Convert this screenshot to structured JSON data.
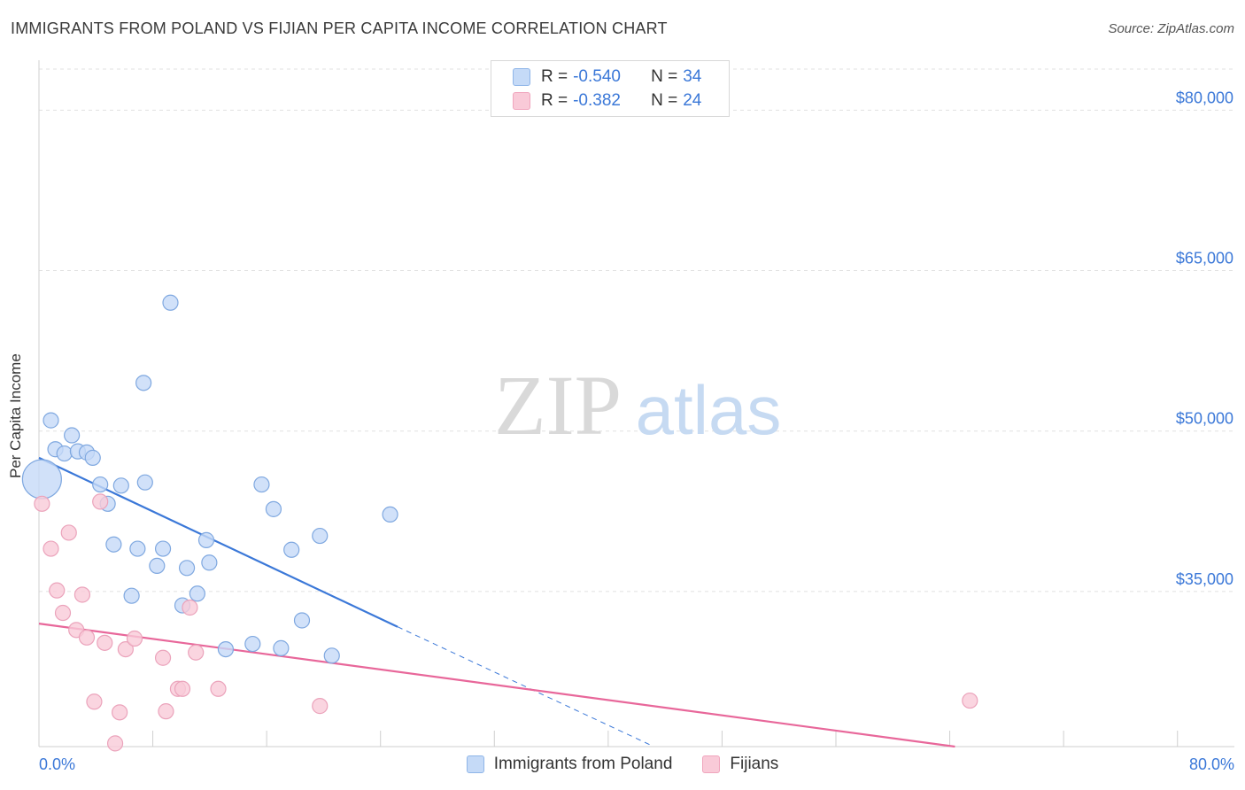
{
  "header": {
    "title": "IMMIGRANTS FROM POLAND VS FIJIAN PER CAPITA INCOME CORRELATION CHART",
    "source": "Source: ZipAtlas.com"
  },
  "stats": [
    {
      "r_label": "R =",
      "r_value": "-0.540",
      "n_label": "N =",
      "n_value": "34",
      "fill": "#c5daf7",
      "stroke": "#8fb5e8"
    },
    {
      "r_label": "R =",
      "r_value": "-0.382",
      "n_label": "N =",
      "n_value": "24",
      "fill": "#f9cad8",
      "stroke": "#f0a5bd"
    }
  ],
  "legend": [
    {
      "label": "Immigrants from Poland",
      "fill": "#c5daf7",
      "stroke": "#8fb5e8"
    },
    {
      "label": "Fijians",
      "fill": "#f9cad8",
      "stroke": "#f0a5bd"
    }
  ],
  "watermark": {
    "zip": "ZIP",
    "atlas": "atlas"
  },
  "chart_data": {
    "type": "scatter",
    "title": "IMMIGRANTS FROM POLAND VS FIJIAN PER CAPITA INCOME CORRELATION CHART",
    "xlabel": "",
    "ylabel": "Per Capita Income",
    "xlim": [
      0,
      80
    ],
    "ylim": [
      20500,
      84500
    ],
    "x_tick_labels": {
      "min": "0.0%",
      "max": "80.0%"
    },
    "y_ticks": [
      {
        "value": 35000,
        "label": "$35,000"
      },
      {
        "value": 50000,
        "label": "$50,000"
      },
      {
        "value": 65000,
        "label": "$65,000"
      },
      {
        "value": 80000,
        "label": "$80,000"
      }
    ],
    "grid": true,
    "series": [
      {
        "name": "Immigrants from Poland",
        "color": "#3b78d8",
        "point_fill": "#c5daf7",
        "point_stroke": "#7fa8e0",
        "points": [
          {
            "x": 0.2,
            "y": 45500,
            "size": "large"
          },
          {
            "x": 0.8,
            "y": 51000
          },
          {
            "x": 1.1,
            "y": 48300
          },
          {
            "x": 1.7,
            "y": 47900
          },
          {
            "x": 2.2,
            "y": 49600
          },
          {
            "x": 2.6,
            "y": 48100
          },
          {
            "x": 3.2,
            "y": 48000
          },
          {
            "x": 3.6,
            "y": 47500
          },
          {
            "x": 4.1,
            "y": 45000
          },
          {
            "x": 4.6,
            "y": 43200
          },
          {
            "x": 5.5,
            "y": 44900
          },
          {
            "x": 7.1,
            "y": 45200
          },
          {
            "x": 5.0,
            "y": 39400
          },
          {
            "x": 6.2,
            "y": 34600
          },
          {
            "x": 6.6,
            "y": 39000
          },
          {
            "x": 7.9,
            "y": 37400
          },
          {
            "x": 8.3,
            "y": 39000
          },
          {
            "x": 9.6,
            "y": 33700
          },
          {
            "x": 9.9,
            "y": 37200
          },
          {
            "x": 10.6,
            "y": 34800
          },
          {
            "x": 11.2,
            "y": 39800
          },
          {
            "x": 11.4,
            "y": 37700
          },
          {
            "x": 12.5,
            "y": 29600
          },
          {
            "x": 14.3,
            "y": 30100
          },
          {
            "x": 14.9,
            "y": 45000
          },
          {
            "x": 15.7,
            "y": 42700
          },
          {
            "x": 16.2,
            "y": 29700
          },
          {
            "x": 16.9,
            "y": 38900
          },
          {
            "x": 17.6,
            "y": 32300
          },
          {
            "x": 18.8,
            "y": 40200
          },
          {
            "x": 19.6,
            "y": 29000
          },
          {
            "x": 23.5,
            "y": 42200
          },
          {
            "x": 7.0,
            "y": 54500
          },
          {
            "x": 8.8,
            "y": 62000
          }
        ],
        "trend": {
          "x_start": 0,
          "y_start": 47500,
          "x_solid_end": 24,
          "y_solid_end": 31700,
          "x_dash_end": 41,
          "y_dash_end": 20600
        }
      },
      {
        "name": "Fijians",
        "color": "#e8679a",
        "point_fill": "#f9cad8",
        "point_stroke": "#eba3bb",
        "points": [
          {
            "x": 0.2,
            "y": 43200
          },
          {
            "x": 0.8,
            "y": 39000
          },
          {
            "x": 1.2,
            "y": 35100
          },
          {
            "x": 1.6,
            "y": 33000
          },
          {
            "x": 2.0,
            "y": 40500
          },
          {
            "x": 2.5,
            "y": 31400
          },
          {
            "x": 2.9,
            "y": 34700
          },
          {
            "x": 3.2,
            "y": 30700
          },
          {
            "x": 3.7,
            "y": 24700
          },
          {
            "x": 4.1,
            "y": 43400
          },
          {
            "x": 4.4,
            "y": 30200
          },
          {
            "x": 5.1,
            "y": 20800
          },
          {
            "x": 5.4,
            "y": 23700
          },
          {
            "x": 5.8,
            "y": 29600
          },
          {
            "x": 6.4,
            "y": 30600
          },
          {
            "x": 8.3,
            "y": 28800
          },
          {
            "x": 8.5,
            "y": 23800
          },
          {
            "x": 9.3,
            "y": 25900
          },
          {
            "x": 9.6,
            "y": 25900
          },
          {
            "x": 10.1,
            "y": 33500
          },
          {
            "x": 10.5,
            "y": 29300
          },
          {
            "x": 12.0,
            "y": 25900
          },
          {
            "x": 18.8,
            "y": 24300
          },
          {
            "x": 62.3,
            "y": 24800
          }
        ],
        "trend": {
          "x_start": 0,
          "y_start": 32000,
          "x_end": 61.3,
          "y_end": 20500
        }
      }
    ]
  }
}
